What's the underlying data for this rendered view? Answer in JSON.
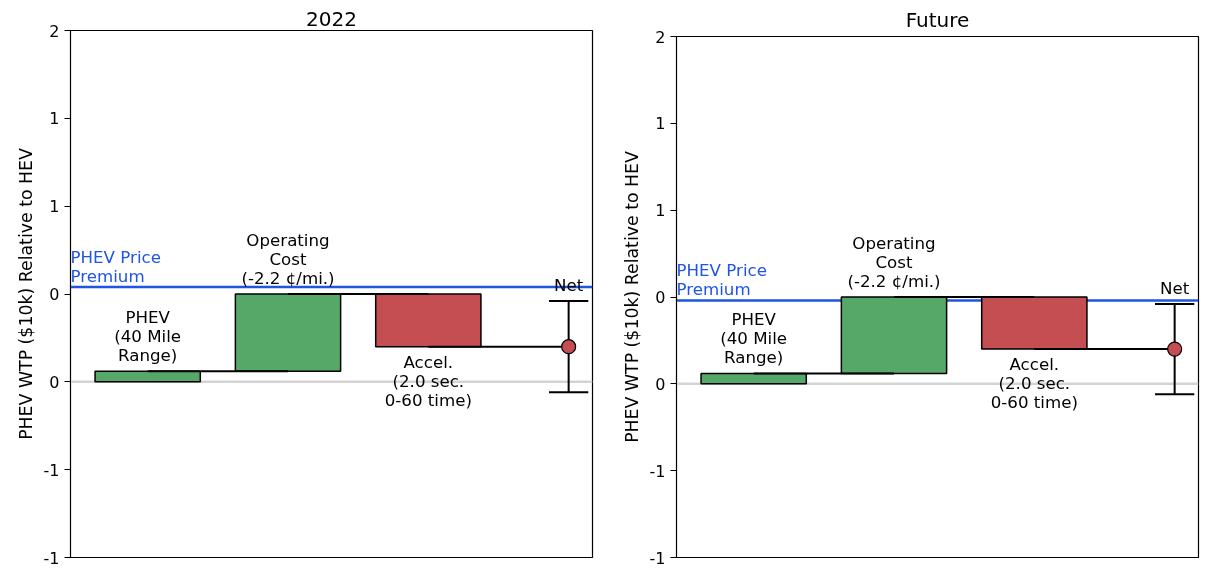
{
  "chart_data": [
    {
      "type": "bar",
      "title": "2022",
      "ylabel": "PHEV WTP ($10k) Relative to HEV",
      "categories": [
        "PHEV\n(40 Mile\nRange)",
        "Operating\nCost\n(-2.2 ¢/mi.)",
        "Accel.\n(2.0 sec.\n0-60 time)",
        "Net"
      ],
      "series": [
        {
          "values": [
            0.06,
            0.44,
            -0.3,
            null
          ],
          "base": [
            0,
            0.06,
            0.5,
            null
          ],
          "colors": [
            "#55a868",
            "#55a868",
            "#c44e52",
            null
          ]
        },
        {
          "type": "line",
          "color": "#000000",
          "x": [
            "PHEV\n(40 Mile\nRange)",
            "Operating\nCost\n(-2.2 ¢/mi.)",
            "Operating\nCost\n(-2.2 ¢/mi.)",
            "Operating\nCost\n(-2.2 ¢/mi.)",
            "Accel.\n(2.0 sec.\n0-60 time)",
            "Accel.\n(2.0 sec.\n0-60 time)",
            "Accel.\n(2.0 sec.\n0-60 time)",
            "Net"
          ],
          "values": [
            0.06,
            0.06,
            null,
            0.5,
            0.5,
            null,
            0.2,
            0.2
          ]
        },
        {
          "type": "scatter",
          "color": "#c44e52",
          "marker": "circle",
          "values": [
            null,
            null,
            null,
            0.2
          ],
          "errors": [
            null,
            null,
            null,
            0.26
          ]
        }
      ],
      "ylim": [
        -1,
        2
      ],
      "yticks": [
        {
          "value": 2,
          "label": "2"
        },
        {
          "value": 1.5,
          "label": "1"
        },
        {
          "value": 1,
          "label": "1"
        },
        {
          "value": 0.5,
          "label": "0"
        },
        {
          "value": 0,
          "label": "0"
        },
        {
          "value": -0.5,
          "label": "-1"
        },
        {
          "value": -1,
          "label": "-1"
        }
      ],
      "ref_lines": [
        {
          "axis": "y",
          "value": 0.54,
          "label": "PHEV Price\nPremium",
          "color": "#1f55e0"
        },
        {
          "axis": "y",
          "value": 0,
          "label": null,
          "color": "#d3d3d3"
        }
      ],
      "tick_labels": "y",
      "grid": false
    },
    {
      "type": "bar",
      "title": "Future",
      "ylabel": "PHEV WTP ($10k) Relative to HEV",
      "categories": [
        "PHEV\n(40 Mile\nRange)",
        "Operating\nCost\n(-2.2 ¢/mi.)",
        "Accel.\n(2.0 sec.\n0-60 time)",
        "Net"
      ],
      "series": [
        {
          "values": [
            0.06,
            0.44,
            -0.3,
            null
          ],
          "base": [
            0,
            0.06,
            0.5,
            null
          ],
          "colors": [
            "#55a868",
            "#55a868",
            "#c44e52",
            null
          ]
        },
        {
          "type": "line",
          "color": "#000000",
          "x": [
            "PHEV\n(40 Mile\nRange)",
            "Operating\nCost\n(-2.2 ¢/mi.)",
            "Operating\nCost\n(-2.2 ¢/mi.)",
            "Operating\nCost\n(-2.2 ¢/mi.)",
            "Accel.\n(2.0 sec.\n0-60 time)",
            "Accel.\n(2.0 sec.\n0-60 time)",
            "Accel.\n(2.0 sec.\n0-60 time)",
            "Net"
          ],
          "values": [
            0.06,
            0.06,
            null,
            0.5,
            0.5,
            null,
            0.2,
            0.2
          ]
        },
        {
          "type": "scatter",
          "color": "#c44e52",
          "marker": "circle",
          "values": [
            null,
            null,
            null,
            0.2
          ],
          "errors": [
            null,
            null,
            null,
            0.26
          ]
        }
      ],
      "ylim": [
        -1,
        2
      ],
      "yticks": [
        {
          "value": 2,
          "label": "2"
        },
        {
          "value": 1.5,
          "label": "1"
        },
        {
          "value": 1,
          "label": "1"
        },
        {
          "value": 0.5,
          "label": "0"
        },
        {
          "value": 0,
          "label": "0"
        },
        {
          "value": -0.5,
          "label": "-1"
        },
        {
          "value": -1,
          "label": "-1"
        }
      ],
      "ref_lines": [
        {
          "axis": "y",
          "value": 0.48,
          "label": "PHEV Price\nPremium",
          "color": "#1f55e0"
        },
        {
          "axis": "y",
          "value": 0,
          "label": null,
          "color": "#d3d3d3"
        }
      ],
      "tick_labels": "y",
      "grid": false
    }
  ]
}
